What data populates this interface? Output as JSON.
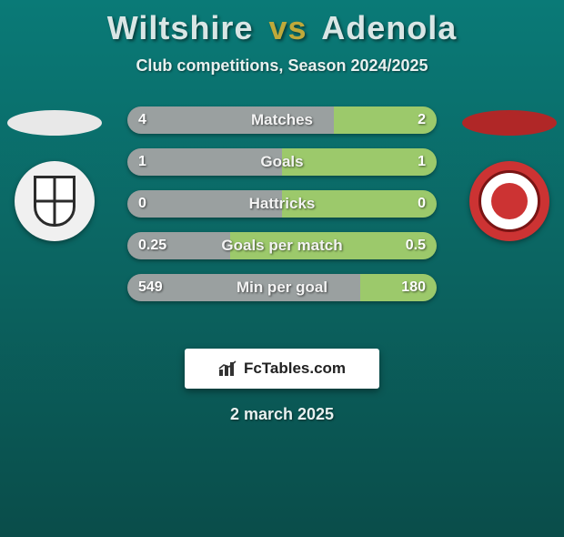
{
  "header": {
    "player1": "Wiltshire",
    "vs": "vs",
    "player2": "Adenola",
    "subtitle": "Club competitions, Season 2024/2025"
  },
  "colors": {
    "left_bar": "#9aa0a0",
    "right_bar": "#9cc96b",
    "left_badge_oval": "#e8e8e8",
    "right_badge_oval": "#b02727",
    "title_accent": "#bfa93a"
  },
  "bars": [
    {
      "label": "Matches",
      "left_val": "4",
      "right_val": "2",
      "left_pct": 66.7,
      "right_pct": 33.3
    },
    {
      "label": "Goals",
      "left_val": "1",
      "right_val": "1",
      "left_pct": 50.0,
      "right_pct": 50.0
    },
    {
      "label": "Hattricks",
      "left_val": "0",
      "right_val": "0",
      "left_pct": 50.0,
      "right_pct": 50.0
    },
    {
      "label": "Goals per match",
      "left_val": "0.25",
      "right_val": "0.5",
      "left_pct": 33.3,
      "right_pct": 66.7
    },
    {
      "label": "Min per goal",
      "left_val": "549",
      "right_val": "180",
      "left_pct": 75.3,
      "right_pct": 24.7
    }
  ],
  "footer": {
    "brand": "FcTables.com",
    "date": "2 march 2025"
  }
}
